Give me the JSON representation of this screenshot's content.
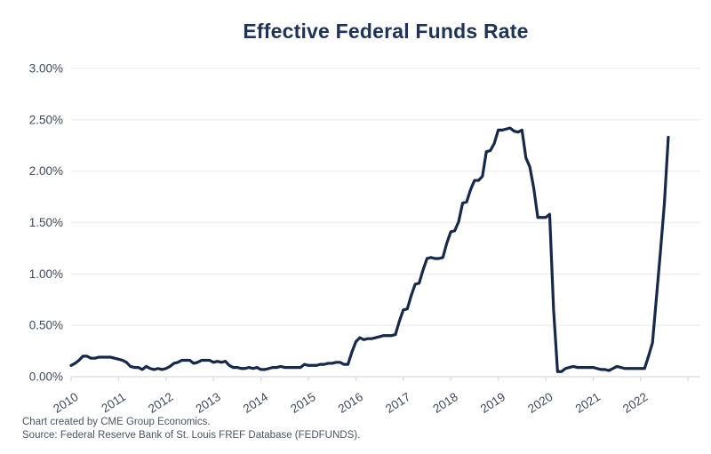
{
  "title": "Effective Federal Funds Rate",
  "footer": {
    "line1": "Chart created by CME Group Economics.",
    "line2": "Source: Federal Reserve Bank of St. Louis FREF Database (FEDFUNDS)."
  },
  "colors": {
    "background": "#ffffff",
    "title_text": "#1e3355",
    "line": "#16294b",
    "axis_text": "#3d4a5c",
    "gridline": "#ececec",
    "axis_line": "#d6dbe0",
    "footer_text": "#4b5563"
  },
  "chart_data": {
    "type": "line",
    "title": "Effective Federal Funds Rate",
    "xlabel": "",
    "ylabel": "",
    "x_unit": "month",
    "x_start": "2010-01",
    "x_end": "2022-08",
    "x_tick_labels": [
      "2010",
      "2011",
      "2012",
      "2013",
      "2014",
      "2015",
      "2016",
      "2017",
      "2018",
      "2019",
      "2020",
      "2021",
      "2022"
    ],
    "y_tick_labels": [
      "0.00%",
      "0.50%",
      "1.00%",
      "1.50%",
      "2.00%",
      "2.50%",
      "3.00%"
    ],
    "ylim": [
      0,
      3
    ],
    "y_tick_step": 0.5,
    "grid": "horizontal",
    "legend": "none",
    "series": [
      {
        "name": "Effective Federal Funds Rate (%, monthly, FEDFUNDS)",
        "values": [
          0.11,
          0.13,
          0.16,
          0.2,
          0.2,
          0.18,
          0.18,
          0.19,
          0.19,
          0.19,
          0.19,
          0.18,
          0.17,
          0.16,
          0.14,
          0.1,
          0.09,
          0.09,
          0.07,
          0.1,
          0.08,
          0.07,
          0.08,
          0.07,
          0.08,
          0.1,
          0.13,
          0.14,
          0.16,
          0.16,
          0.16,
          0.13,
          0.14,
          0.16,
          0.16,
          0.16,
          0.14,
          0.15,
          0.14,
          0.15,
          0.11,
          0.09,
          0.09,
          0.08,
          0.08,
          0.09,
          0.08,
          0.09,
          0.07,
          0.07,
          0.08,
          0.09,
          0.09,
          0.1,
          0.09,
          0.09,
          0.09,
          0.09,
          0.09,
          0.12,
          0.11,
          0.11,
          0.11,
          0.12,
          0.12,
          0.13,
          0.13,
          0.14,
          0.14,
          0.12,
          0.12,
          0.24,
          0.34,
          0.38,
          0.36,
          0.37,
          0.37,
          0.38,
          0.39,
          0.4,
          0.4,
          0.4,
          0.41,
          0.54,
          0.65,
          0.66,
          0.79,
          0.9,
          0.91,
          1.04,
          1.15,
          1.16,
          1.15,
          1.15,
          1.16,
          1.3,
          1.41,
          1.42,
          1.51,
          1.69,
          1.7,
          1.82,
          1.91,
          1.91,
          1.95,
          2.19,
          2.2,
          2.27,
          2.4,
          2.4,
          2.41,
          2.42,
          2.39,
          2.38,
          2.4,
          2.13,
          2.04,
          1.83,
          1.55,
          1.55,
          1.55,
          1.58,
          0.65,
          0.05,
          0.05,
          0.08,
          0.09,
          0.1,
          0.09,
          0.09,
          0.09,
          0.09,
          0.09,
          0.08,
          0.07,
          0.07,
          0.06,
          0.08,
          0.1,
          0.09,
          0.08,
          0.08,
          0.08,
          0.08,
          0.08,
          0.08,
          0.2,
          0.33,
          0.77,
          1.21,
          1.68,
          2.33
        ]
      }
    ]
  }
}
